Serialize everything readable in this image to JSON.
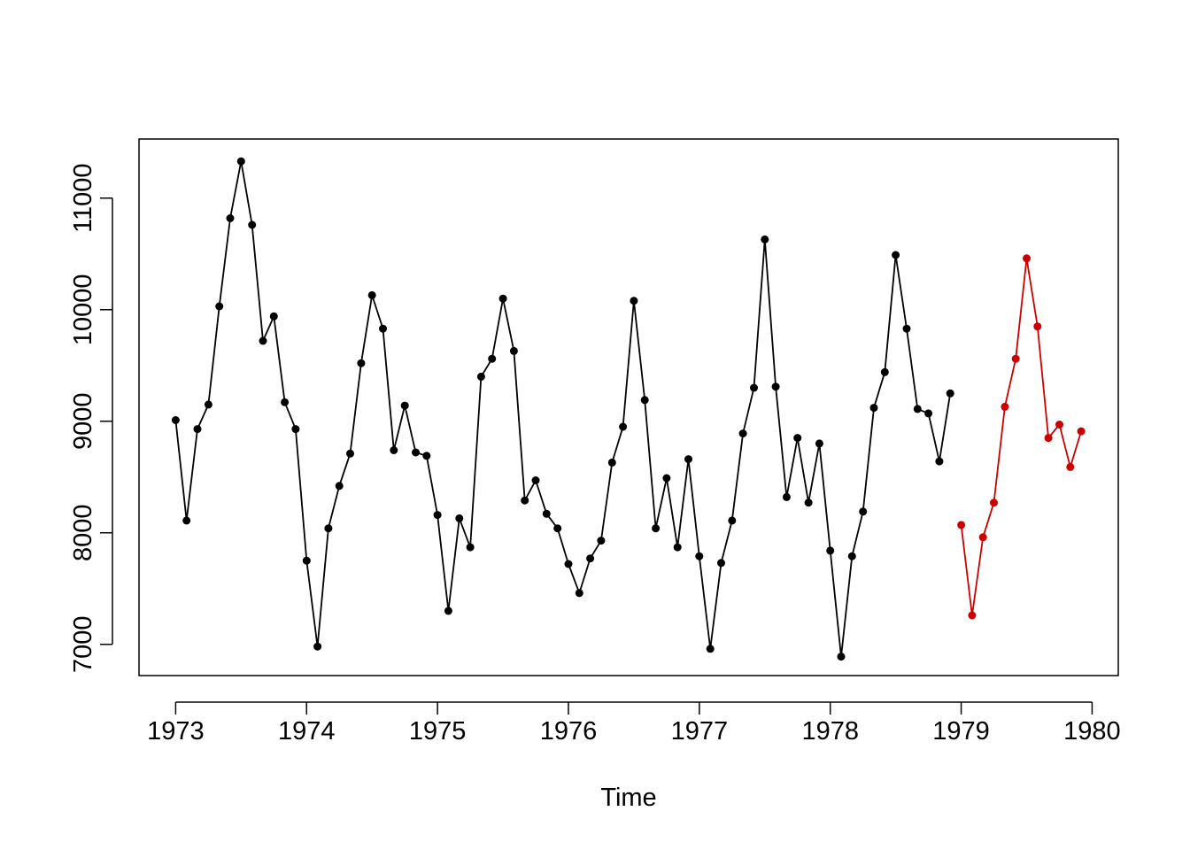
{
  "chart_data": {
    "type": "line",
    "title": "",
    "xlabel": "Time",
    "ylabel": "",
    "xlim": [
      1972.72,
      1980.2
    ],
    "ylim": [
      6720,
      11530
    ],
    "x_ticks": [
      {
        "value": 1973,
        "label": "1973"
      },
      {
        "value": 1974,
        "label": "1974"
      },
      {
        "value": 1975,
        "label": "1975"
      },
      {
        "value": 1976,
        "label": "1976"
      },
      {
        "value": 1977,
        "label": "1977"
      },
      {
        "value": 1978,
        "label": "1978"
      },
      {
        "value": 1979,
        "label": "1979"
      },
      {
        "value": 1980,
        "label": "1980"
      }
    ],
    "y_ticks": [
      {
        "value": 7000,
        "label": "7000"
      },
      {
        "value": 8000,
        "label": "8000"
      },
      {
        "value": 9000,
        "label": "9000"
      },
      {
        "value": 10000,
        "label": "10000"
      },
      {
        "value": 11000,
        "label": "11000"
      }
    ],
    "x_start": 1973,
    "frequency": 12,
    "grid": false,
    "legend": "none",
    "series": [
      {
        "color": "#000000",
        "start": 1973,
        "values": [
          9010,
          8110,
          8930,
          9150,
          10030,
          10820,
          11330,
          10760,
          9720,
          9940,
          9170,
          8930,
          7750,
          6980,
          8040,
          8420,
          8710,
          9520,
          10130,
          9830,
          8740,
          9140,
          8720,
          8690,
          8160,
          7300,
          8130,
          7870,
          9400,
          9560,
          10100,
          9630,
          8290,
          8470,
          8170,
          8040,
          7720,
          7460,
          7770,
          7930,
          8630,
          8950,
          10080,
          9190,
          8040,
          8490,
          7870,
          8660,
          7790,
          6960,
          7730,
          8110,
          8890,
          9300,
          10630,
          9310,
          8320,
          8850,
          8270,
          8800,
          7840,
          6890,
          7790,
          8190,
          9120,
          9440,
          10490,
          9830,
          9110,
          9070,
          8640,
          9250
        ]
      },
      {
        "color": "#cc0000",
        "start": 1979,
        "values": [
          8070,
          7260,
          7960,
          8270,
          9130,
          9560,
          10460,
          9850,
          8850,
          8970,
          8590,
          8910
        ]
      }
    ]
  }
}
